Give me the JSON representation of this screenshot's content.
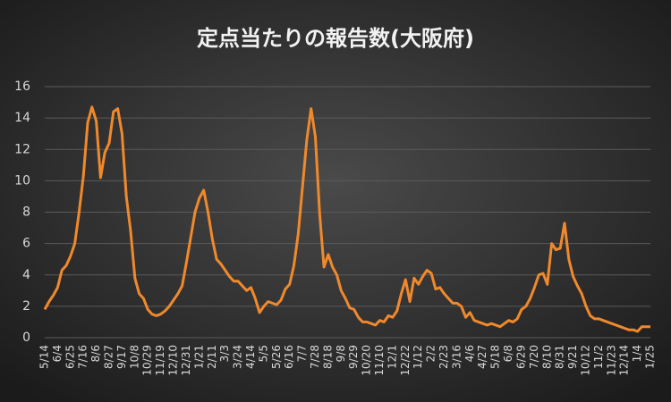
{
  "chart_data": {
    "type": "line",
    "title": "定点当たりの報告数(大阪府)",
    "categories": [
      "5/14",
      null,
      null,
      "6/4",
      null,
      null,
      "6/25",
      null,
      null,
      "7/16",
      null,
      null,
      "8/6",
      null,
      null,
      "8/27",
      null,
      null,
      "9/17",
      null,
      null,
      "10/8",
      null,
      null,
      "10/29",
      null,
      null,
      "11/19",
      null,
      null,
      "12/10",
      null,
      null,
      "12/31",
      null,
      null,
      "1/21",
      null,
      null,
      "2/11",
      null,
      null,
      "3/3",
      null,
      null,
      "3/24",
      null,
      null,
      "4/14",
      null,
      null,
      "5/5",
      null,
      null,
      "5/26",
      null,
      null,
      "6/16",
      null,
      null,
      "7/7",
      null,
      null,
      "7/28",
      null,
      null,
      "8/18",
      null,
      null,
      "9/8",
      null,
      null,
      "9/29",
      null,
      null,
      "10/20",
      null,
      null,
      "11/10",
      null,
      null,
      "12/1",
      null,
      null,
      "12/22",
      null,
      null,
      "1/12",
      null,
      null,
      "2/2",
      null,
      null,
      "2/23",
      null,
      null,
      "3/16",
      null,
      null,
      "4/6",
      null,
      null,
      "4/27",
      null,
      null,
      "5/18",
      null,
      null,
      "6/8",
      null,
      null,
      "6/29",
      null,
      null,
      "7/20",
      null,
      null,
      "8/10",
      null,
      null,
      "8/31",
      null,
      null,
      "9/21",
      null,
      null,
      "10/12",
      null,
      null,
      "11/2",
      null,
      null,
      "11/23",
      null,
      null,
      "12/14",
      null,
      null,
      "1/4",
      null,
      null,
      "1/25"
    ],
    "values": [
      1.8,
      2.3,
      2.7,
      3.2,
      4.3,
      4.6,
      5.2,
      6.0,
      8.0,
      10.3,
      13.7,
      14.7,
      13.8,
      10.2,
      11.8,
      12.4,
      14.4,
      14.6,
      13.0,
      9.0,
      6.8,
      3.8,
      2.8,
      2.5,
      1.8,
      1.5,
      1.4,
      1.5,
      1.7,
      2.0,
      2.4,
      2.8,
      3.3,
      4.8,
      6.4,
      8.0,
      8.9,
      9.4,
      8.0,
      6.3,
      5.0,
      4.7,
      4.3,
      3.9,
      3.6,
      3.6,
      3.3,
      3.0,
      3.2,
      2.5,
      1.6,
      2.0,
      2.3,
      2.2,
      2.1,
      2.4,
      3.1,
      3.4,
      4.6,
      6.6,
      9.6,
      12.6,
      14.6,
      12.8,
      7.9,
      4.5,
      5.3,
      4.5,
      4.0,
      3.0,
      2.5,
      1.9,
      1.8,
      1.3,
      1.0,
      1.0,
      0.9,
      0.8,
      1.1,
      1.0,
      1.4,
      1.3,
      1.7,
      2.8,
      3.7,
      2.3,
      3.8,
      3.4,
      3.9,
      4.3,
      4.1,
      3.1,
      3.2,
      2.8,
      2.5,
      2.2,
      2.2,
      2.0,
      1.3,
      1.6,
      1.1,
      1.0,
      0.9,
      0.8,
      0.9,
      0.8,
      0.7,
      0.9,
      1.1,
      1.0,
      1.2,
      1.8,
      2.0,
      2.5,
      3.2,
      4.0,
      4.1,
      3.4,
      6.0,
      5.6,
      5.7,
      7.3,
      5.0,
      3.9,
      3.3,
      2.8,
      2.0,
      1.4,
      1.2,
      1.2,
      1.1,
      1.0,
      0.9,
      0.8,
      0.7,
      0.6,
      0.5,
      0.5,
      0.4,
      0.7,
      0.7,
      0.7
    ],
    "color": "#f0892c",
    "ylim": [
      0,
      16
    ],
    "yticks": [
      0,
      2,
      4,
      6,
      8,
      10,
      12,
      14,
      16
    ],
    "grid": true
  }
}
